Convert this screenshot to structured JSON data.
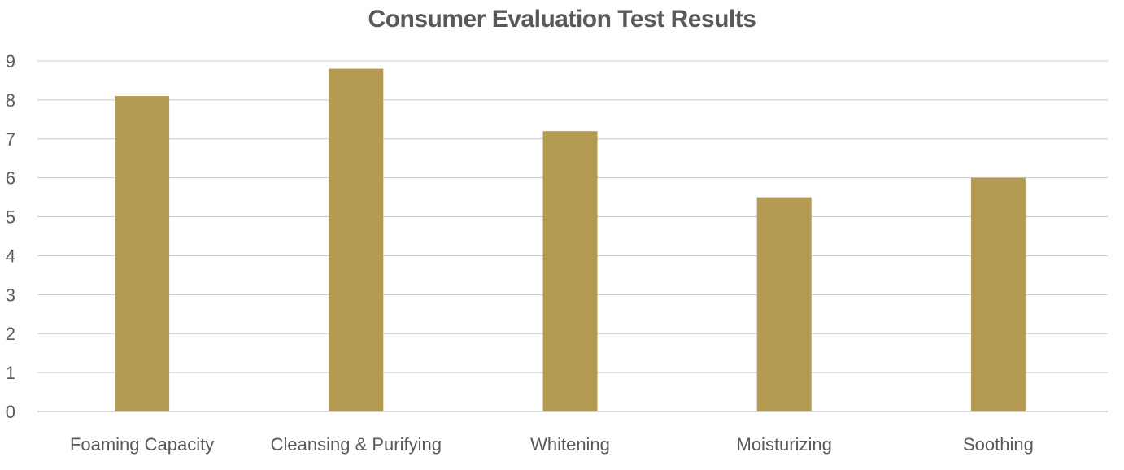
{
  "chart_data": {
    "type": "bar",
    "title": "Consumer Evaluation Test Results",
    "categories": [
      "Foaming Capacity",
      "Cleansing & Purifying",
      "Whitening",
      "Moisturizing",
      "Soothing"
    ],
    "series": [
      {
        "values": [
          8.1,
          8.8,
          7.2,
          5.5,
          6.0
        ],
        "color": "#b59a52"
      }
    ],
    "ylim": [
      0,
      9
    ],
    "yticks": [
      0,
      1,
      2,
      3,
      4,
      5,
      6,
      7,
      8,
      9
    ],
    "grid": true,
    "xlabel": "",
    "ylabel": ""
  }
}
